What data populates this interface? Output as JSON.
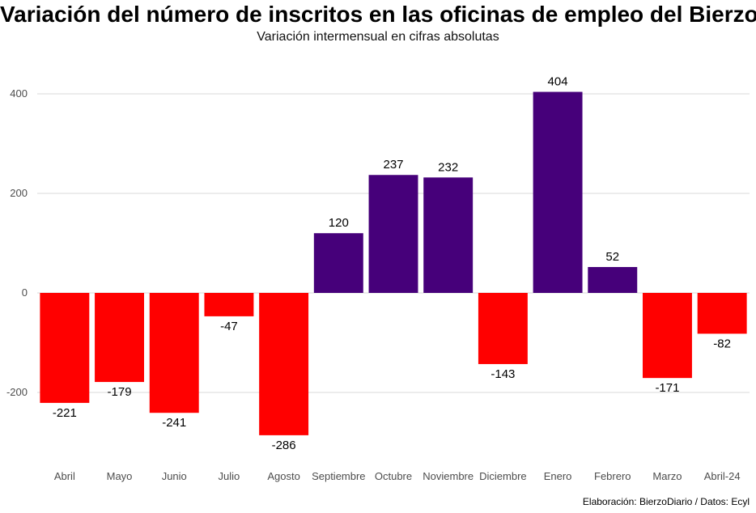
{
  "title": "Variación del número de inscritos en las oficinas de empleo del Bierzo",
  "subtitle": "Variación intermensual en cifras absolutas",
  "caption": "Elaboración: BierzoDiario / Datos: Ecyl",
  "colors": {
    "positive": "#46007a",
    "negative": "#ff0000",
    "grid": "#d9d9d9"
  },
  "chart_data": {
    "type": "bar",
    "title": "Variación del número de inscritos en las oficinas de empleo del Bierzo",
    "subtitle": "Variación intermensual en cifras absolutas",
    "xlabel": "",
    "ylabel": "",
    "categories": [
      "Abril",
      "Mayo",
      "Junio",
      "Julio",
      "Agosto",
      "Septiembre",
      "Octubre",
      "Noviembre",
      "Diciembre",
      "Enero",
      "Febrero",
      "Marzo",
      "Abril-24"
    ],
    "values": [
      -221,
      -179,
      -241,
      -47,
      -286,
      120,
      237,
      232,
      -143,
      404,
      52,
      -171,
      -82
    ],
    "yticks": [
      -200,
      0,
      200,
      400
    ],
    "ylim": [
      -330,
      440
    ],
    "grid": true,
    "legend": "none"
  }
}
